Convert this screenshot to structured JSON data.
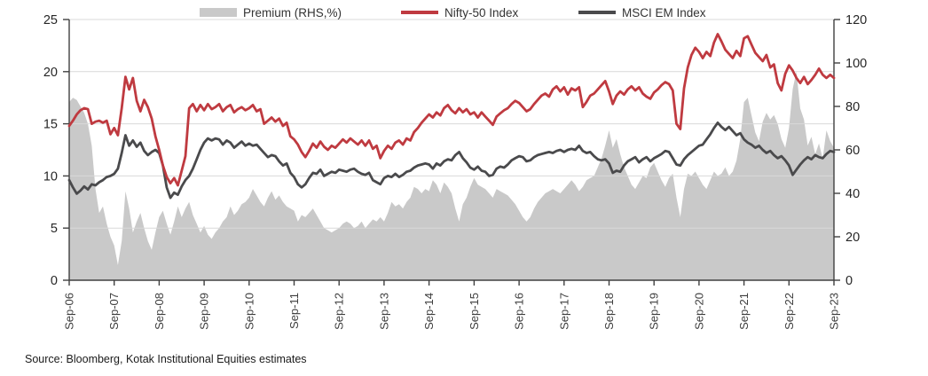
{
  "colors": {
    "grid": "#d9d9d9",
    "axis": "#404040",
    "tick_text": "#262626",
    "xlabel_text": "#3d3d3d"
  },
  "legend": {
    "items": [
      {
        "label": "Premium (RHS,%)",
        "swatch": "area",
        "color": "#c9c9c9"
      },
      {
        "label": "Nifty-50 Index",
        "swatch": "line",
        "color": "#bf3a40"
      },
      {
        "label": "MSCI EM Index",
        "swatch": "line",
        "color": "#4a4a4c"
      }
    ]
  },
  "left_axis": {
    "ticks": [
      0,
      5,
      10,
      15,
      20,
      25
    ]
  },
  "right_axis": {
    "ticks": [
      0,
      20,
      40,
      60,
      80,
      100,
      120
    ]
  },
  "x_axis": {
    "labels": [
      "Sep-06",
      "Sep-07",
      "Sep-08",
      "Sep-09",
      "Sep-10",
      "Sep-11",
      "Sep-12",
      "Sep-13",
      "Sep-14",
      "Sep-15",
      "Sep-16",
      "Sep-17",
      "Sep-18",
      "Sep-19",
      "Sep-20",
      "Sep-21",
      "Sep-22",
      "Sep-23"
    ]
  },
  "source": "Source: Bloomberg, Kotak Institutional Equities estimates",
  "chart_data": {
    "type": "line",
    "x_unit": "monthly from Sep-06 to Sep-23",
    "left_range": [
      0,
      25
    ],
    "right_range": [
      0,
      120
    ],
    "grid": "horizontal",
    "legend_position": "top",
    "series": [
      {
        "name": "Premium (RHS,%)",
        "axis": "right",
        "type": "area",
        "color": "#c9c9c9",
        "values": [
          82,
          84,
          83,
          80,
          77,
          72,
          62,
          42,
          31,
          34,
          26,
          20,
          16,
          7,
          18,
          41,
          33,
          22,
          27,
          31,
          24,
          18,
          14,
          22,
          29,
          32,
          26,
          21,
          27,
          34,
          29,
          33,
          36,
          30,
          26,
          22,
          25,
          21,
          19,
          22,
          24,
          27,
          29,
          34,
          30,
          32,
          35,
          36,
          38,
          42,
          39,
          36,
          34,
          38,
          41,
          37,
          39,
          36,
          34,
          33,
          32,
          27,
          30,
          29,
          31,
          33,
          30,
          27,
          24,
          23,
          22,
          23,
          24,
          26,
          27,
          26,
          24,
          25,
          27,
          24,
          26,
          28,
          27,
          29,
          27,
          31,
          36,
          34,
          35,
          33,
          36,
          38,
          43,
          42,
          40,
          42,
          41,
          46,
          44,
          40,
          45,
          43,
          40,
          33,
          27,
          35,
          38,
          43,
          47,
          44,
          43,
          42,
          40,
          38,
          42,
          41,
          40,
          39,
          37,
          35,
          32,
          29,
          27,
          29,
          33,
          36,
          38,
          40,
          41,
          42,
          41,
          40,
          42,
          44,
          46,
          44,
          41,
          43,
          46,
          47,
          48,
          52,
          56,
          62,
          69,
          61,
          65,
          58,
          52,
          48,
          44,
          42,
          45,
          48,
          47,
          52,
          54,
          50,
          46,
          43,
          47,
          49,
          38,
          29,
          42,
          49,
          48,
          50,
          47,
          44,
          42,
          46,
          50,
          48,
          49,
          52,
          48,
          50,
          55,
          65,
          82,
          84,
          76,
          68,
          64,
          73,
          77,
          74,
          76,
          72,
          65,
          61,
          70,
          88,
          96,
          79,
          74,
          62,
          66,
          58,
          63,
          56,
          69,
          64,
          61
        ]
      },
      {
        "name": "MSCI EM Index",
        "axis": "left",
        "type": "line",
        "color": "#4a4a4c",
        "values": [
          9.6,
          8.9,
          8.3,
          8.6,
          9.0,
          8.7,
          9.2,
          9.1,
          9.4,
          9.6,
          9.9,
          10.0,
          10.2,
          10.7,
          12.2,
          13.9,
          12.9,
          13.4,
          12.8,
          13.2,
          12.4,
          12.0,
          12.3,
          12.5,
          12.2,
          11.0,
          8.9,
          7.9,
          8.4,
          8.2,
          9.0,
          9.6,
          10.0,
          10.7,
          11.6,
          12.5,
          13.2,
          13.6,
          13.4,
          13.6,
          13.5,
          13.0,
          13.4,
          13.2,
          12.7,
          13.0,
          13.3,
          12.9,
          13.1,
          12.9,
          13.0,
          12.6,
          12.2,
          11.8,
          12.0,
          11.9,
          11.4,
          11.0,
          11.2,
          10.3,
          9.9,
          9.2,
          8.9,
          9.2,
          9.8,
          10.3,
          10.2,
          10.6,
          10.0,
          10.2,
          10.4,
          10.3,
          10.6,
          10.5,
          10.4,
          10.6,
          10.7,
          10.4,
          10.2,
          10.1,
          10.3,
          9.6,
          9.4,
          9.2,
          9.8,
          10.0,
          9.9,
          10.2,
          9.9,
          10.1,
          10.4,
          10.5,
          10.8,
          11.0,
          11.1,
          11.2,
          11.1,
          10.7,
          11.2,
          11.0,
          11.4,
          11.6,
          11.5,
          12.0,
          12.3,
          11.7,
          11.3,
          10.8,
          10.6,
          10.9,
          10.5,
          10.4,
          10.0,
          10.1,
          10.7,
          10.9,
          10.8,
          11.1,
          11.5,
          11.7,
          11.9,
          11.8,
          11.4,
          11.5,
          11.8,
          12.0,
          12.1,
          12.2,
          12.3,
          12.2,
          12.4,
          12.5,
          12.3,
          12.5,
          12.6,
          12.5,
          12.9,
          12.4,
          12.2,
          12.3,
          11.9,
          11.6,
          11.5,
          11.6,
          11.2,
          10.3,
          10.5,
          10.4,
          11.0,
          11.4,
          11.6,
          11.8,
          11.3,
          11.6,
          11.8,
          11.4,
          11.7,
          11.9,
          12.1,
          12.4,
          12.3,
          11.7,
          11.1,
          11.0,
          11.6,
          12.0,
          12.3,
          12.6,
          12.9,
          13.0,
          13.5,
          14.0,
          14.6,
          15.1,
          14.7,
          14.4,
          14.7,
          14.3,
          13.9,
          14.1,
          13.5,
          13.2,
          13.0,
          12.7,
          12.9,
          12.5,
          12.2,
          12.4,
          12.0,
          11.7,
          11.9,
          11.5,
          11.0,
          10.1,
          10.6,
          11.1,
          11.5,
          11.8,
          11.6,
          12.0,
          11.8,
          11.7,
          12.1,
          12.4,
          12.3
        ]
      },
      {
        "name": "Nifty-50 Index",
        "axis": "left",
        "type": "line",
        "color": "#bf3a40",
        "values": [
          14.8,
          15.3,
          15.9,
          16.3,
          16.5,
          16.4,
          15.0,
          15.2,
          15.3,
          15.1,
          15.3,
          14.0,
          14.6,
          13.9,
          16.5,
          19.5,
          18.3,
          19.4,
          17.2,
          16.2,
          17.3,
          16.6,
          15.5,
          13.8,
          12.5,
          11.0,
          9.9,
          9.3,
          9.8,
          9.1,
          10.5,
          11.9,
          16.5,
          16.9,
          16.2,
          16.8,
          16.3,
          16.9,
          16.4,
          16.6,
          16.9,
          16.2,
          16.6,
          16.8,
          16.1,
          16.4,
          16.6,
          16.3,
          16.5,
          16.8,
          16.2,
          16.4,
          15.0,
          15.3,
          15.6,
          15.2,
          15.5,
          14.8,
          15.1,
          13.8,
          13.5,
          13.0,
          12.3,
          11.8,
          12.4,
          13.1,
          12.7,
          13.3,
          12.8,
          12.5,
          12.9,
          12.7,
          13.1,
          13.5,
          13.2,
          13.6,
          13.3,
          13.0,
          13.4,
          12.9,
          13.4,
          12.6,
          12.9,
          11.7,
          12.4,
          12.9,
          12.6,
          13.2,
          13.4,
          13.0,
          13.6,
          13.4,
          14.2,
          14.6,
          15.1,
          15.5,
          15.9,
          15.6,
          16.1,
          15.8,
          16.5,
          16.8,
          16.3,
          16.0,
          16.5,
          16.1,
          16.4,
          15.9,
          16.1,
          15.6,
          16.1,
          15.7,
          15.3,
          14.9,
          15.7,
          16.0,
          16.3,
          16.5,
          16.9,
          17.2,
          17.0,
          16.6,
          16.2,
          16.4,
          16.9,
          17.3,
          17.7,
          17.9,
          17.6,
          18.3,
          18.6,
          18.1,
          18.5,
          17.8,
          18.4,
          18.2,
          18.5,
          16.6,
          17.1,
          17.7,
          17.9,
          18.3,
          18.7,
          19.1,
          18.1,
          16.9,
          17.7,
          18.1,
          17.8,
          18.3,
          18.6,
          18.2,
          18.5,
          17.9,
          17.6,
          17.4,
          18.0,
          18.3,
          18.7,
          19.0,
          18.8,
          18.2,
          15.0,
          14.5,
          18.4,
          20.4,
          21.6,
          22.3,
          21.9,
          21.3,
          21.9,
          21.5,
          22.8,
          23.6,
          22.9,
          22.1,
          21.7,
          21.3,
          22.0,
          21.5,
          23.2,
          23.4,
          22.6,
          21.8,
          21.4,
          21.0,
          21.6,
          20.4,
          20.7,
          18.9,
          18.2,
          19.8,
          20.6,
          20.1,
          19.4,
          18.9,
          19.5,
          18.8,
          19.2,
          19.7,
          20.3,
          19.7,
          19.4,
          19.7,
          19.4
        ]
      }
    ]
  }
}
